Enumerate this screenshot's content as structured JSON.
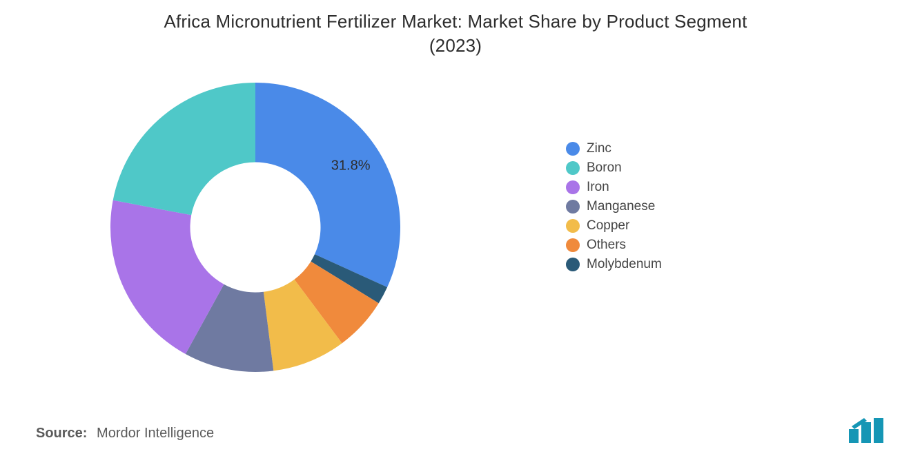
{
  "title_line1": "Africa Micronutrient Fertilizer Market: Market Share by Product Segment",
  "title_line2": "(2023)",
  "title_fontsize": 26,
  "title_color": "#2d2d2d",
  "source_label": "Source:",
  "source_value": "Mordor Intelligence",
  "source_fontsize": 20,
  "legend_fontsize": 19,
  "chart": {
    "type": "donut",
    "background_color": "#ffffff",
    "inner_radius_ratio": 0.45,
    "outer_radius": 210,
    "start_angle_deg": -90,
    "direction": "clockwise",
    "slice_label_fontsize": 20,
    "slices": [
      {
        "name": "Zinc",
        "value": 31.8,
        "color": "#4a8ae8",
        "show_label": true,
        "label": "31.8%"
      },
      {
        "name": "Molybdenum",
        "value": 2.0,
        "color": "#2a5a78",
        "show_label": false,
        "label": ""
      },
      {
        "name": "Others",
        "value": 6.0,
        "color": "#f08a3c",
        "show_label": false,
        "label": ""
      },
      {
        "name": "Copper",
        "value": 8.2,
        "color": "#f2bc4a",
        "show_label": false,
        "label": ""
      },
      {
        "name": "Manganese",
        "value": 10.0,
        "color": "#6f7aa1",
        "show_label": false,
        "label": ""
      },
      {
        "name": "Iron",
        "value": 20.0,
        "color": "#a974e8",
        "show_label": false,
        "label": ""
      },
      {
        "name": "Boron",
        "value": 22.0,
        "color": "#4fc8c8",
        "show_label": false,
        "label": ""
      }
    ],
    "legend_order": [
      "Zinc",
      "Boron",
      "Iron",
      "Manganese",
      "Copper",
      "Others",
      "Molybdenum"
    ]
  },
  "logo": {
    "bar_color": "#1596b5",
    "accent_color": "#1596b5"
  }
}
